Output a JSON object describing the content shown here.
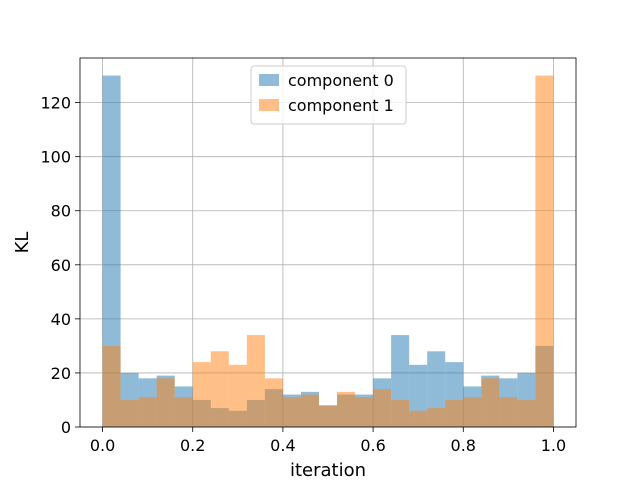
{
  "chart_data": {
    "type": "bar",
    "title": "",
    "xlabel": "iteration",
    "ylabel": "KL",
    "xlim": [
      -0.05,
      1.05
    ],
    "ylim": [
      0,
      136.5
    ],
    "xticks": [
      0.0,
      0.2,
      0.4,
      0.6,
      0.8,
      1.0
    ],
    "xtick_labels": [
      "0.0",
      "0.2",
      "0.4",
      "0.6",
      "0.8",
      "1.0"
    ],
    "yticks": [
      0,
      20,
      40,
      60,
      80,
      100,
      120
    ],
    "ytick_labels": [
      "0",
      "20",
      "40",
      "60",
      "80",
      "100",
      "120"
    ],
    "grid": true,
    "legend_position": "top-center",
    "bin_width": 0.04,
    "bin_edges": [
      0.0,
      0.04,
      0.08,
      0.12,
      0.16,
      0.2,
      0.24,
      0.28,
      0.32,
      0.36,
      0.4,
      0.44,
      0.48,
      0.52,
      0.56,
      0.6,
      0.64,
      0.68,
      0.72,
      0.76,
      0.8,
      0.84,
      0.88,
      0.92,
      0.96,
      1.0
    ],
    "series": [
      {
        "name": "component 0",
        "color": "#1f77b4",
        "opacity": 0.5,
        "values": [
          130,
          20,
          18,
          19,
          15,
          10,
          7,
          6,
          10,
          14,
          12,
          13,
          8,
          12,
          12,
          18,
          34,
          23,
          28,
          24,
          15,
          19,
          18,
          20,
          30
        ]
      },
      {
        "name": "component 1",
        "color": "#ff7f0e",
        "opacity": 0.5,
        "values": [
          30,
          10,
          11,
          18,
          11,
          24,
          28,
          23,
          34,
          18,
          11,
          12,
          8,
          13,
          11,
          14,
          10,
          6,
          7,
          10,
          11,
          18,
          11,
          10,
          130
        ]
      }
    ]
  }
}
